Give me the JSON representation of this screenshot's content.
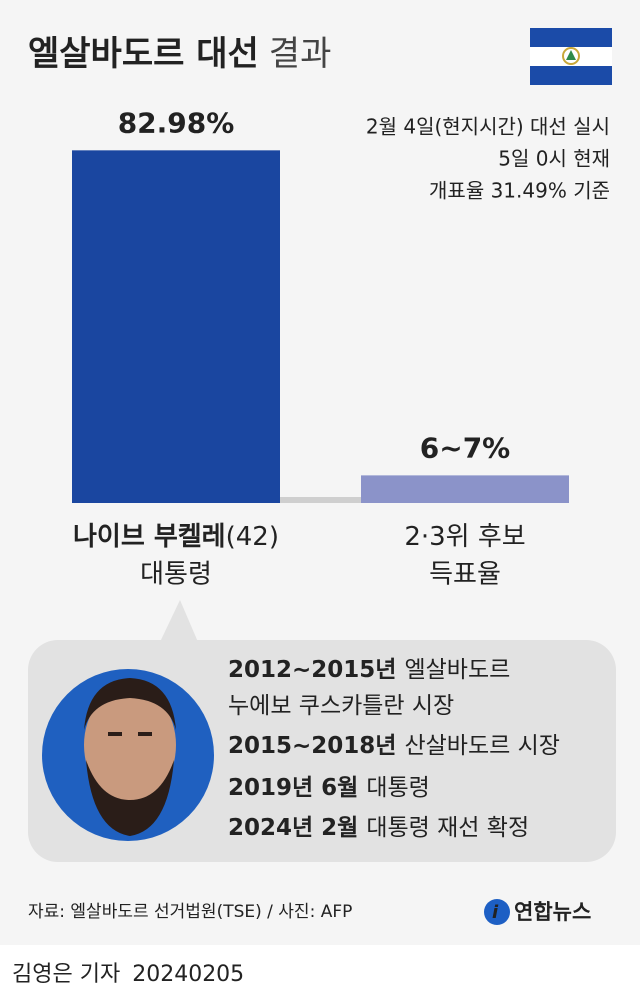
{
  "chart_data": {
    "type": "bar",
    "title": "엘살바도르 대선",
    "title_suffix": "결과",
    "notes": [
      "2월 4일(현지시간) 대선 실시",
      "5일 0시 현재",
      "개표율 31.49% 기준"
    ],
    "categories": [
      "나이브 부켈레",
      "2·3위 후보"
    ],
    "candidate_age": "(42)",
    "category_sublabels": [
      "대통령",
      "득표율"
    ],
    "values": [
      82.98,
      6.5
    ],
    "value_labels": [
      "82.98%",
      "6~7%"
    ],
    "colors": [
      "#1a46a0",
      "#8b93c9"
    ],
    "ylim": [
      0,
      100
    ]
  },
  "profile": {
    "items": [
      {
        "bold": "2012~2015년",
        "text": "엘살바도르"
      },
      {
        "text": "누에보 쿠스카틀란 시장"
      },
      {
        "bold": "2015~2018년",
        "text": "산살바도르 시장"
      },
      {
        "bold": "2019년 6월",
        "text": "대통령"
      },
      {
        "bold": "2024년 2월",
        "text": "대통령 재선 확정"
      }
    ]
  },
  "footer": {
    "source": "자료: 엘살바도르 선거법원(TSE) / 사진: AFP",
    "logo": "연합뉴스",
    "reporter": "김영은 기자",
    "date": "20240205"
  }
}
